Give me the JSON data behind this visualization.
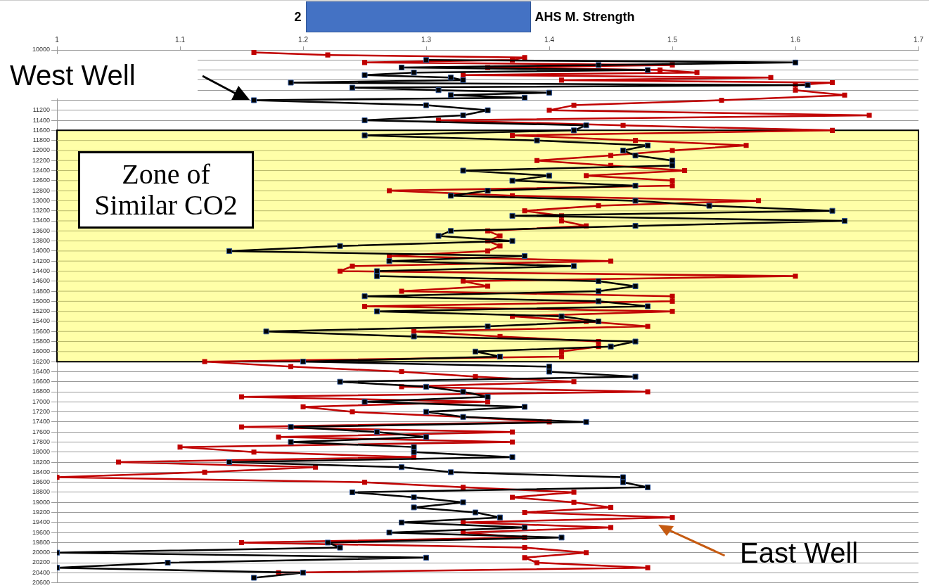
{
  "chart_data": {
    "type": "line",
    "title": "AHS M. Strength",
    "annotations": [
      "2",
      "West Well",
      "East Well"
    ],
    "xlim": [
      1,
      1.7
    ],
    "xticks": [
      1,
      1.1,
      1.2,
      1.3,
      1.4,
      1.5,
      1.6,
      1.7
    ],
    "ylim": [
      20600,
      10000
    ],
    "yticks": [
      10000,
      {
        "value": 10200,
        "label": null
      },
      {
        "value": 10400,
        "label": null
      },
      {
        "value": 10600,
        "label": null
      },
      {
        "value": 10800,
        "label": null
      },
      {
        "value": 11000,
        "label": null
      },
      11200,
      11400,
      11600,
      11800,
      12000,
      12200,
      12400,
      12600,
      12800,
      13000,
      13200,
      13400,
      13600,
      13800,
      14000,
      14200,
      14400,
      14600,
      14800,
      15000,
      15200,
      15400,
      15600,
      15800,
      16000,
      16200,
      16400,
      16600,
      16800,
      17000,
      17200,
      17400,
      17600,
      17800,
      18000,
      18200,
      18400,
      18600,
      18800,
      19000,
      19200,
      19400,
      19600,
      19800,
      20000,
      20200,
      20400,
      20600
    ],
    "grid": "y",
    "legend": false,
    "marker": "square",
    "line_style": "solid",
    "bands": [
      {
        "axis": "y",
        "from": 11600,
        "to": 16200,
        "label": "Zone of Similar CO2",
        "color": "#ffffa8"
      }
    ],
    "series": [
      {
        "color": "#000000",
        "x": [
          1.3,
          1.6,
          1.44,
          1.28,
          1.48,
          1.29,
          1.25,
          1.32,
          1.33,
          1.19,
          1.61,
          1.24,
          1.31,
          1.4,
          1.32,
          1.38,
          1.16,
          1.3,
          1.35,
          1.33,
          1.25,
          1.43,
          1.42,
          1.25,
          1.39,
          1.48,
          1.46,
          1.47,
          1.5,
          1.5,
          1.33,
          1.4,
          1.37,
          1.47,
          1.35,
          1.32,
          1.47,
          1.53,
          1.63,
          1.37,
          1.64,
          1.47,
          1.32,
          1.31,
          1.37,
          1.23,
          1.14,
          1.38,
          1.27,
          1.42,
          1.26,
          1.26,
          1.44,
          1.47,
          1.44,
          1.25,
          1.44,
          1.48,
          1.26,
          1.41,
          1.44,
          1.35,
          1.17,
          1.29,
          1.47,
          1.45,
          1.34,
          1.36,
          1.2,
          1.4,
          1.4,
          1.47,
          1.23,
          1.3,
          1.33,
          1.35,
          1.25,
          1.38,
          1.3,
          1.33,
          1.43,
          1.19,
          1.26,
          1.3,
          1.19,
          1.29,
          1.29,
          1.37,
          1.14,
          1.28,
          1.32,
          1.46,
          1.46,
          1.48,
          1.24,
          1.29,
          1.33,
          1.29,
          1.34,
          1.36,
          1.28,
          1.38,
          1.27,
          1.41,
          1.22,
          1.23,
          1.0,
          1.3,
          1.09,
          1.0,
          1.2,
          1.16
        ],
        "values": [
          10200,
          10250,
          10300,
          10350,
          10400,
          10450,
          10500,
          10550,
          10600,
          10650,
          10700,
          10750,
          10800,
          10850,
          10900,
          10950,
          11000,
          11100,
          11200,
          11300,
          11400,
          11500,
          11600,
          11700,
          11800,
          11900,
          12000,
          12100,
          12200,
          12300,
          12400,
          12500,
          12600,
          12700,
          12800,
          12900,
          13000,
          13100,
          13200,
          13300,
          13400,
          13500,
          13600,
          13700,
          13800,
          13900,
          14000,
          14100,
          14200,
          14300,
          14400,
          14500,
          14600,
          14700,
          14800,
          14900,
          15000,
          15100,
          15200,
          15300,
          15400,
          15500,
          15600,
          15700,
          15800,
          15900,
          16000,
          16100,
          16200,
          16300,
          16400,
          16500,
          16600,
          16700,
          16800,
          16900,
          17000,
          17100,
          17200,
          17300,
          17400,
          17500,
          17600,
          17700,
          17800,
          17900,
          18000,
          18100,
          18200,
          18300,
          18400,
          18500,
          18600,
          18700,
          18800,
          18900,
          19000,
          19100,
          19200,
          19300,
          19400,
          19500,
          19600,
          19700,
          19800,
          19900,
          20000,
          20100,
          20200,
          20300,
          20400,
          20500
        ]
      },
      {
        "color": "#c00000",
        "x": [
          1.16,
          1.22,
          1.38,
          1.37,
          1.25,
          1.5,
          1.35,
          1.49,
          1.52,
          1.33,
          1.58,
          1.41,
          1.63,
          1.6,
          1.6,
          1.64,
          1.54,
          1.42,
          1.4,
          1.66,
          1.31,
          1.46,
          1.63,
          1.37,
          1.47,
          1.56,
          1.5,
          1.45,
          1.39,
          1.45,
          1.51,
          1.43,
          1.5,
          1.5,
          1.27,
          1.37,
          1.57,
          1.44,
          1.38,
          1.41,
          1.41,
          1.43,
          1.35,
          1.36,
          1.35,
          1.36,
          1.35,
          1.27,
          1.45,
          1.24,
          1.23,
          1.6,
          1.33,
          1.35,
          1.28,
          1.5,
          1.5,
          1.25,
          1.5,
          1.37,
          1.43,
          1.48,
          1.29,
          1.36,
          1.44,
          1.44,
          1.41,
          1.41,
          1.12,
          1.19,
          1.28,
          1.34,
          1.42,
          1.28,
          1.48,
          1.15,
          1.35,
          1.2,
          1.24,
          1.33,
          1.4,
          1.15,
          1.37,
          1.18,
          1.37,
          1.1,
          1.16,
          1.29,
          1.05,
          1.21,
          1.12,
          1.0,
          1.25,
          1.33,
          1.42,
          1.37,
          1.42,
          1.45,
          1.38,
          1.5,
          1.33,
          1.45,
          1.33,
          1.38,
          1.15,
          1.38,
          1.43,
          1.38,
          1.39,
          1.48,
          1.18
        ],
        "values": [
          10050,
          10100,
          10150,
          10200,
          10250,
          10300,
          10350,
          10400,
          10450,
          10500,
          10550,
          10600,
          10650,
          10700,
          10800,
          10900,
          11000,
          11100,
          11200,
          11300,
          11400,
          11500,
          11600,
          11700,
          11800,
          11900,
          12000,
          12100,
          12200,
          12300,
          12400,
          12500,
          12600,
          12700,
          12800,
          12900,
          13000,
          13100,
          13200,
          13300,
          13400,
          13500,
          13600,
          13700,
          13800,
          13900,
          14000,
          14100,
          14200,
          14300,
          14400,
          14500,
          14600,
          14700,
          14800,
          14900,
          15000,
          15100,
          15200,
          15300,
          15400,
          15500,
          15600,
          15700,
          15800,
          15900,
          16000,
          16100,
          16200,
          16300,
          16400,
          16500,
          16600,
          16700,
          16800,
          16900,
          17000,
          17100,
          17200,
          17300,
          17400,
          17500,
          17600,
          17700,
          17800,
          17900,
          18000,
          18100,
          18200,
          18300,
          18400,
          18500,
          18600,
          18700,
          18800,
          18900,
          19000,
          19100,
          19200,
          19300,
          19400,
          19500,
          19600,
          19700,
          19800,
          19900,
          20000,
          20100,
          20200,
          20300,
          20400
        ]
      }
    ]
  }
}
